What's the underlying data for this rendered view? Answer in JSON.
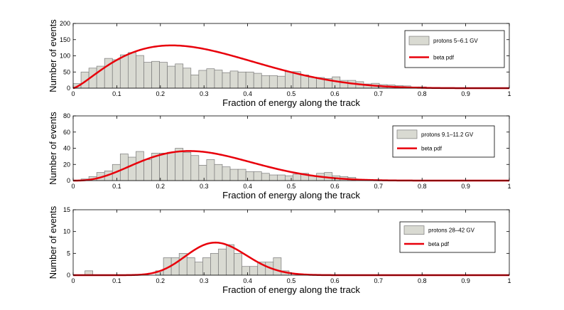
{
  "chart_data": [
    {
      "type": "bar",
      "series_name": "protons 5-6.1 GV",
      "legend_labels": [
        "protons 5–6.1 GV",
        "beta pdf"
      ],
      "xlabel": "Fraction of energy along the track",
      "ylabel": "Number of events",
      "xlim": [
        0,
        1
      ],
      "ylim": [
        0,
        200
      ],
      "xticks": [
        0,
        0.1,
        0.2,
        0.3,
        0.4,
        0.5,
        0.6,
        0.7,
        0.8,
        0.9,
        1
      ],
      "xtick_labels": [
        "0",
        "0.1",
        "0.2",
        "0.3",
        "0.4",
        "0.5",
        "0.6",
        "0.7",
        "0.8",
        "0.9",
        "1"
      ],
      "yticks": [
        0,
        50,
        100,
        150,
        200
      ],
      "ytick_labels": [
        "0",
        "50",
        "100",
        "150",
        "200"
      ],
      "bin_width": 0.018,
      "bin_centers": [
        0.009,
        0.027,
        0.045,
        0.063,
        0.081,
        0.099,
        0.117,
        0.135,
        0.153,
        0.171,
        0.189,
        0.207,
        0.225,
        0.243,
        0.261,
        0.279,
        0.297,
        0.315,
        0.333,
        0.351,
        0.369,
        0.387,
        0.405,
        0.423,
        0.441,
        0.459,
        0.477,
        0.495,
        0.513,
        0.531,
        0.549,
        0.567,
        0.585,
        0.603,
        0.621,
        0.639,
        0.657,
        0.675,
        0.693,
        0.711,
        0.729,
        0.747,
        0.765,
        0.783,
        0.801
      ],
      "counts": [
        14,
        50,
        62,
        68,
        92,
        88,
        103,
        110,
        101,
        80,
        83,
        80,
        68,
        75,
        62,
        41,
        55,
        60,
        56,
        48,
        53,
        50,
        50,
        46,
        39,
        39,
        37,
        51,
        51,
        41,
        34,
        33,
        30,
        35,
        24,
        24,
        20,
        13,
        15,
        11,
        10,
        8,
        7,
        4,
        4
      ],
      "pdf": {
        "name": "beta pdf",
        "a": 2.4,
        "b": 5.8,
        "scale": 2.55
      }
    },
    {
      "type": "bar",
      "series_name": "protons 9.1-11.2 GV",
      "legend_labels": [
        "protons 9.1–11.2 GV",
        "beta pdf"
      ],
      "xlabel": "Fraction of energy along the track",
      "ylabel": "Number of events",
      "xlim": [
        0,
        1
      ],
      "ylim": [
        0,
        80
      ],
      "xticks": [
        0,
        0.1,
        0.2,
        0.3,
        0.4,
        0.5,
        0.6,
        0.7,
        0.8,
        0.9,
        1
      ],
      "xtick_labels": [
        "0",
        "0.1",
        "0.2",
        "0.3",
        "0.4",
        "0.5",
        "0.6",
        "0.7",
        "0.8",
        "0.9",
        "1"
      ],
      "yticks": [
        0,
        20,
        40,
        60,
        80
      ],
      "ytick_labels": [
        "0",
        "20",
        "40",
        "60",
        "80"
      ],
      "bin_width": 0.018,
      "bin_centers": [
        0.027,
        0.045,
        0.063,
        0.081,
        0.099,
        0.117,
        0.135,
        0.153,
        0.171,
        0.189,
        0.207,
        0.225,
        0.243,
        0.261,
        0.279,
        0.297,
        0.315,
        0.333,
        0.351,
        0.369,
        0.387,
        0.405,
        0.423,
        0.441,
        0.459,
        0.477,
        0.495,
        0.513,
        0.531,
        0.549,
        0.567,
        0.585,
        0.603,
        0.621,
        0.639
      ],
      "counts": [
        2,
        5,
        10,
        12,
        20,
        33,
        29,
        36,
        26,
        34,
        34,
        35,
        40,
        35,
        31,
        19,
        26,
        20,
        17,
        14,
        14,
        11,
        11,
        9,
        7,
        7,
        6,
        8,
        9,
        6,
        9,
        10,
        6,
        5,
        4
      ],
      "pdf": {
        "name": "beta pdf",
        "a": 3.9,
        "b": 9.0,
        "scale": 1.45
      }
    },
    {
      "type": "bar",
      "series_name": "protons 28-42 GV",
      "legend_labels": [
        "protons 28–42 GV",
        "beta pdf"
      ],
      "xlabel": "Fraction of energy along the track",
      "ylabel": "Number of events",
      "xlim": [
        0,
        1
      ],
      "ylim": [
        0,
        15
      ],
      "xticks": [
        0,
        0.1,
        0.2,
        0.3,
        0.4,
        0.5,
        0.6,
        0.7,
        0.8,
        0.9,
        1
      ],
      "xtick_labels": [
        "0",
        "0.1",
        "0.2",
        "0.3",
        "0.4",
        "0.5",
        "0.6",
        "0.7",
        "0.8",
        "0.9",
        "1"
      ],
      "yticks": [
        0,
        5,
        10,
        15
      ],
      "ytick_labels": [
        "0",
        "5",
        "10",
        "15"
      ],
      "bin_width": 0.018,
      "bin_centers": [
        0.036,
        0.198,
        0.216,
        0.234,
        0.252,
        0.27,
        0.288,
        0.306,
        0.324,
        0.342,
        0.36,
        0.378,
        0.396,
        0.414,
        0.432,
        0.45,
        0.468,
        0.486
      ],
      "counts": [
        1,
        1,
        4,
        4,
        5,
        4,
        3,
        4,
        5,
        6,
        7,
        5,
        2,
        2,
        3,
        3,
        4,
        1
      ],
      "pdf": {
        "name": "beta pdf",
        "a": 16.0,
        "b": 32.0,
        "scale": 0.85
      }
    }
  ]
}
